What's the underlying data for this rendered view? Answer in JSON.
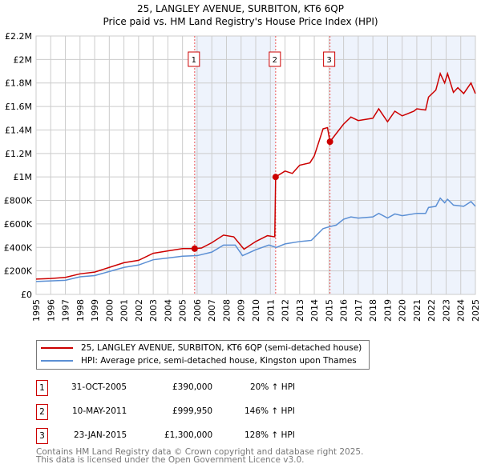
{
  "chart_data": {
    "type": "line",
    "title": "25, LANGLEY AVENUE, SURBITON, KT6 6QP",
    "subtitle": "Price paid vs. HM Land Registry's House Price Index (HPI)",
    "xlim": [
      1995,
      2025
    ],
    "ylim": [
      0,
      2200000
    ],
    "x_ticks": [
      "1995",
      "1996",
      "1997",
      "1998",
      "1999",
      "2000",
      "2001",
      "2002",
      "2003",
      "2004",
      "2005",
      "2006",
      "2007",
      "2008",
      "2009",
      "2010",
      "2011",
      "2012",
      "2013",
      "2014",
      "2015",
      "2016",
      "2017",
      "2018",
      "2019",
      "2020",
      "2021",
      "2022",
      "2023",
      "2024",
      "2025"
    ],
    "y_ticks": [
      {
        "v": 0,
        "label": "£0"
      },
      {
        "v": 200000,
        "label": "£200K"
      },
      {
        "v": 400000,
        "label": "£400K"
      },
      {
        "v": 600000,
        "label": "£600K"
      },
      {
        "v": 800000,
        "label": "£800K"
      },
      {
        "v": 1000000,
        "label": "£1M"
      },
      {
        "v": 1200000,
        "label": "£1.2M"
      },
      {
        "v": 1400000,
        "label": "£1.4M"
      },
      {
        "v": 1600000,
        "label": "£1.6M"
      },
      {
        "v": 1800000,
        "label": "£1.8M"
      },
      {
        "v": 2000000,
        "label": "£2M"
      },
      {
        "v": 2200000,
        "label": "£2.2M"
      }
    ],
    "grid": true,
    "series": [
      {
        "name": "25, LANGLEY AVENUE, SURBITON, KT6 6QP (semi-detached house)",
        "color": "#cc0000",
        "x": [
          1995,
          1996,
          1997,
          1998,
          1999,
          2000,
          2001,
          2002,
          2003,
          2004,
          2005,
          2005.83,
          2006.3,
          2007,
          2007.8,
          2008.5,
          2009.2,
          2010,
          2010.8,
          2011.3,
          2011.36,
          2012,
          2012.5,
          2013,
          2013.7,
          2014,
          2014.6,
          2014.9,
          2015.07,
          2015.5,
          2016,
          2016.5,
          2017,
          2018,
          2018.4,
          2019,
          2019.5,
          2020,
          2020.8,
          2021,
          2021.6,
          2021.8,
          2022.3,
          2022.6,
          2022.9,
          2023.1,
          2023.5,
          2023.8,
          2024.2,
          2024.7,
          2025
        ],
        "y": [
          130000,
          135000,
          145000,
          175000,
          190000,
          230000,
          270000,
          290000,
          350000,
          370000,
          390000,
          390000,
          395000,
          440000,
          505000,
          490000,
          385000,
          450000,
          500000,
          490000,
          999950,
          1050000,
          1030000,
          1100000,
          1120000,
          1180000,
          1410000,
          1420000,
          1300000,
          1370000,
          1450000,
          1510000,
          1480000,
          1500000,
          1580000,
          1470000,
          1560000,
          1520000,
          1560000,
          1580000,
          1570000,
          1680000,
          1740000,
          1880000,
          1800000,
          1880000,
          1720000,
          1760000,
          1710000,
          1800000,
          1710000
        ]
      },
      {
        "name": "HPI: Average price, semi-detached house, Kingston upon Thames",
        "color": "#5b8fd4",
        "x": [
          1995,
          1996,
          1997,
          1998,
          1999,
          2000,
          2001,
          2002,
          2003,
          2004,
          2005,
          2006,
          2007,
          2007.8,
          2008.6,
          2009.1,
          2010,
          2010.9,
          2011.4,
          2012,
          2013,
          2013.8,
          2014.6,
          2015,
          2015.5,
          2016,
          2016.5,
          2017,
          2018,
          2018.4,
          2019,
          2019.5,
          2020,
          2021,
          2021.6,
          2021.8,
          2022.3,
          2022.6,
          2022.9,
          2023.1,
          2023.5,
          2024.2,
          2024.7,
          2025
        ],
        "y": [
          110000,
          115000,
          120000,
          150000,
          160000,
          195000,
          230000,
          250000,
          295000,
          310000,
          325000,
          330000,
          360000,
          420000,
          420000,
          330000,
          380000,
          420000,
          400000,
          430000,
          450000,
          460000,
          560000,
          575000,
          590000,
          640000,
          660000,
          650000,
          660000,
          690000,
          650000,
          685000,
          670000,
          690000,
          690000,
          740000,
          750000,
          820000,
          780000,
          810000,
          760000,
          750000,
          790000,
          750000
        ]
      }
    ],
    "sales": [
      {
        "label": "1",
        "date": "31-OCT-2005",
        "x": 2005.83,
        "price": "£390,000",
        "value": 390000,
        "hpi": "20% ↑ HPI"
      },
      {
        "label": "2",
        "date": "10-MAY-2011",
        "x": 2011.36,
        "price": "£999,950",
        "value": 999950,
        "hpi": "146% ↑ HPI"
      },
      {
        "label": "3",
        "date": "23-JAN-2015",
        "x": 2015.07,
        "price": "£1,300,000",
        "value": 1300000,
        "hpi": "128% ↑ HPI"
      }
    ],
    "shaded_ranges": [
      [
        2005.83,
        2011.36
      ],
      [
        2015.07,
        2025
      ]
    ]
  },
  "footer": {
    "line1": "Contains HM Land Registry data © Crown copyright and database right 2025.",
    "line2": "This data is licensed under the Open Government Licence v3.0."
  }
}
